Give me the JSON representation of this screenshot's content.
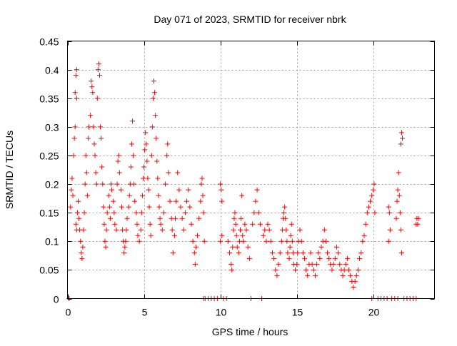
{
  "chart_data": {
    "type": "scatter",
    "title": "Day 071 of 2023, SRMTID for receiver nbrk",
    "xlabel": "GPS time / hours",
    "ylabel": "SRMTID / TECUs",
    "xlim": [
      0,
      24
    ],
    "ylim": [
      0,
      0.45
    ],
    "xticks": [
      0,
      5,
      10,
      15,
      20
    ],
    "yticks": [
      0,
      0.05,
      0.1,
      0.15,
      0.2,
      0.25,
      0.3,
      0.35,
      0.4,
      0.45
    ],
    "xtick_labels": [
      "0",
      "5",
      "10",
      "15",
      "20"
    ],
    "ytick_labels": [
      "0",
      "0.05",
      "0.1",
      "0.15",
      "0.2",
      "0.25",
      "0.3",
      "0.35",
      "0.4",
      "0.45"
    ],
    "grid": true,
    "marker": "+",
    "color": "#ff0000",
    "series": [
      {
        "name": "SRMTID",
        "points": [
          [
            0.1,
            0.0
          ],
          [
            0.2,
            0.16
          ],
          [
            0.25,
            0.19
          ],
          [
            0.3,
            0.21
          ],
          [
            0.35,
            0.18
          ],
          [
            0.4,
            0.25
          ],
          [
            0.45,
            0.28
          ],
          [
            0.5,
            0.3
          ],
          [
            0.5,
            0.36
          ],
          [
            0.55,
            0.39
          ],
          [
            0.6,
            0.4
          ],
          [
            0.6,
            0.35
          ],
          [
            0.55,
            0.13
          ],
          [
            0.6,
            0.12
          ],
          [
            0.65,
            0.15
          ],
          [
            0.7,
            0.17
          ],
          [
            0.75,
            0.14
          ],
          [
            0.8,
            0.12
          ],
          [
            0.85,
            0.1
          ],
          [
            0.9,
            0.08
          ],
          [
            0.95,
            0.07
          ],
          [
            1.0,
            0.09
          ],
          [
            1.05,
            0.12
          ],
          [
            1.1,
            0.15
          ],
          [
            1.15,
            0.2
          ],
          [
            1.2,
            0.25
          ],
          [
            1.25,
            0.22
          ],
          [
            1.3,
            0.18
          ],
          [
            1.35,
            0.28
          ],
          [
            1.4,
            0.3
          ],
          [
            1.5,
            0.32
          ],
          [
            1.55,
            0.38
          ],
          [
            1.6,
            0.37
          ],
          [
            1.65,
            0.36
          ],
          [
            1.7,
            0.3
          ],
          [
            1.75,
            0.27
          ],
          [
            1.8,
            0.25
          ],
          [
            1.85,
            0.22
          ],
          [
            1.9,
            0.2
          ],
          [
            1.95,
            0.35
          ],
          [
            2.0,
            0.4
          ],
          [
            2.05,
            0.41
          ],
          [
            2.1,
            0.39
          ],
          [
            2.15,
            0.3
          ],
          [
            2.2,
            0.28
          ],
          [
            2.25,
            0.23
          ],
          [
            2.3,
            0.2
          ],
          [
            2.35,
            0.16
          ],
          [
            2.4,
            0.13
          ],
          [
            2.45,
            0.1
          ],
          [
            2.5,
            0.09
          ],
          [
            2.55,
            0.12
          ],
          [
            2.6,
            0.15
          ],
          [
            2.7,
            0.18
          ],
          [
            2.75,
            0.16
          ],
          [
            2.8,
            0.14
          ],
          [
            2.85,
            0.2
          ],
          [
            2.9,
            0.19
          ],
          [
            3.0,
            0.17
          ],
          [
            3.05,
            0.15
          ],
          [
            3.1,
            0.13
          ],
          [
            3.2,
            0.12
          ],
          [
            3.25,
            0.2
          ],
          [
            3.3,
            0.24
          ],
          [
            3.35,
            0.25
          ],
          [
            3.4,
            0.22
          ],
          [
            3.5,
            0.19
          ],
          [
            3.55,
            0.16
          ],
          [
            3.6,
            0.12
          ],
          [
            3.65,
            0.1
          ],
          [
            3.7,
            0.08
          ],
          [
            3.75,
            0.09
          ],
          [
            3.8,
            0.1
          ],
          [
            3.85,
            0.12
          ],
          [
            3.9,
            0.14
          ],
          [
            4.0,
            0.16
          ],
          [
            4.05,
            0.18
          ],
          [
            4.1,
            0.2
          ],
          [
            4.15,
            0.23
          ],
          [
            4.2,
            0.27
          ],
          [
            4.25,
            0.31
          ],
          [
            4.3,
            0.25
          ],
          [
            4.35,
            0.2
          ],
          [
            4.4,
            0.17
          ],
          [
            4.5,
            0.15
          ],
          [
            4.55,
            0.13
          ],
          [
            4.6,
            0.11
          ],
          [
            4.7,
            0.1
          ],
          [
            4.8,
            0.12
          ],
          [
            4.85,
            0.15
          ],
          [
            4.9,
            0.18
          ],
          [
            4.95,
            0.21
          ],
          [
            5.0,
            0.23
          ],
          [
            5.05,
            0.26
          ],
          [
            5.1,
            0.29
          ],
          [
            5.15,
            0.27
          ],
          [
            5.2,
            0.24
          ],
          [
            5.25,
            0.21
          ],
          [
            5.3,
            0.19
          ],
          [
            5.35,
            0.16
          ],
          [
            5.4,
            0.13
          ],
          [
            5.45,
            0.11
          ],
          [
            5.5,
            0.25
          ],
          [
            5.55,
            0.3
          ],
          [
            5.6,
            0.35
          ],
          [
            5.65,
            0.38
          ],
          [
            5.7,
            0.36
          ],
          [
            5.75,
            0.32
          ],
          [
            5.8,
            0.28
          ],
          [
            5.85,
            0.24
          ],
          [
            5.9,
            0.21
          ],
          [
            5.95,
            0.18
          ],
          [
            6.0,
            0.16
          ],
          [
            6.05,
            0.14
          ],
          [
            6.1,
            0.13
          ],
          [
            6.2,
            0.12
          ],
          [
            6.3,
            0.15
          ],
          [
            6.4,
            0.2
          ],
          [
            6.5,
            0.25
          ],
          [
            6.55,
            0.27
          ],
          [
            6.6,
            0.22
          ],
          [
            6.7,
            0.17
          ],
          [
            6.8,
            0.14
          ],
          [
            6.85,
            0.12
          ],
          [
            6.9,
            0.08
          ],
          [
            7.0,
            0.11
          ],
          [
            7.05,
            0.14
          ],
          [
            7.1,
            0.17
          ],
          [
            7.2,
            0.22
          ],
          [
            7.3,
            0.19
          ],
          [
            7.4,
            0.16
          ],
          [
            7.5,
            0.14
          ],
          [
            7.6,
            0.12
          ],
          [
            7.7,
            0.15
          ],
          [
            7.8,
            0.17
          ],
          [
            7.9,
            0.19
          ],
          [
            8.0,
            0.16
          ],
          [
            8.1,
            0.13
          ],
          [
            8.2,
            0.1
          ],
          [
            8.3,
            0.08
          ],
          [
            8.35,
            0.06
          ],
          [
            8.4,
            0.09
          ],
          [
            8.5,
            0.11
          ],
          [
            8.6,
            0.14
          ],
          [
            8.7,
            0.17
          ],
          [
            8.75,
            0.2
          ],
          [
            8.8,
            0.21
          ],
          [
            8.85,
            0.18
          ],
          [
            8.9,
            0.15
          ],
          [
            8.95,
            0.1
          ],
          [
            8.9,
            0.0
          ],
          [
            9.0,
            0.0
          ],
          [
            9.2,
            0.0
          ],
          [
            9.4,
            0.0
          ],
          [
            9.6,
            0.0
          ],
          [
            9.8,
            0.0
          ],
          [
            10.0,
            0.2
          ],
          [
            10.05,
            0.19
          ],
          [
            10.1,
            0.17
          ],
          [
            10.0,
            0.1
          ],
          [
            10.1,
            0.11
          ],
          [
            10.2,
            0.0
          ],
          [
            10.4,
            0.0
          ],
          [
            10.5,
            0.1
          ],
          [
            10.6,
            0.08
          ],
          [
            10.7,
            0.06
          ],
          [
            10.75,
            0.05
          ],
          [
            10.8,
            0.09
          ],
          [
            10.85,
            0.12
          ],
          [
            10.9,
            0.14
          ],
          [
            10.95,
            0.15
          ],
          [
            11.0,
            0.13
          ],
          [
            11.05,
            0.11
          ],
          [
            11.1,
            0.09
          ],
          [
            11.2,
            0.08
          ],
          [
            11.25,
            0.1
          ],
          [
            11.3,
            0.12
          ],
          [
            11.35,
            0.14
          ],
          [
            11.4,
            0.18
          ],
          [
            11.45,
            0.11
          ],
          [
            11.5,
            0.1
          ],
          [
            11.6,
            0.13
          ],
          [
            11.7,
            0.12
          ],
          [
            11.8,
            0.09
          ],
          [
            11.9,
            0.07
          ],
          [
            12.0,
            0.0
          ],
          [
            12.1,
            0.13
          ],
          [
            12.2,
            0.15
          ],
          [
            12.3,
            0.17
          ],
          [
            12.4,
            0.19
          ],
          [
            12.5,
            0.15
          ],
          [
            12.6,
            0.13
          ],
          [
            12.7,
            0.0
          ],
          [
            12.8,
            0.11
          ],
          [
            12.9,
            0.12
          ],
          [
            13.0,
            0.1
          ],
          [
            13.1,
            0.13
          ],
          [
            13.2,
            0.12
          ],
          [
            13.3,
            0.1
          ],
          [
            13.4,
            0.08
          ],
          [
            13.5,
            0.07
          ],
          [
            13.6,
            0.05
          ],
          [
            13.7,
            0.04
          ],
          [
            13.8,
            0.06
          ],
          [
            13.9,
            0.08
          ],
          [
            14.0,
            0.1
          ],
          [
            14.05,
            0.12
          ],
          [
            14.1,
            0.14
          ],
          [
            14.15,
            0.15
          ],
          [
            14.2,
            0.16
          ],
          [
            14.25,
            0.14
          ],
          [
            14.3,
            0.12
          ],
          [
            14.35,
            0.1
          ],
          [
            14.4,
            0.08
          ],
          [
            14.5,
            0.07
          ],
          [
            14.55,
            0.09
          ],
          [
            14.6,
            0.11
          ],
          [
            14.65,
            0.13
          ],
          [
            14.7,
            0.1
          ],
          [
            14.75,
            0.08
          ],
          [
            14.8,
            0.06
          ],
          [
            14.9,
            0.05
          ],
          [
            15.0,
            0.06
          ],
          [
            15.05,
            0.08
          ],
          [
            15.1,
            0.1
          ],
          [
            15.2,
            0.12
          ],
          [
            15.3,
            0.1
          ],
          [
            15.4,
            0.08
          ],
          [
            15.5,
            0.07
          ],
          [
            15.6,
            0.05
          ],
          [
            15.7,
            0.04
          ],
          [
            15.8,
            0.06
          ],
          [
            15.9,
            0.08
          ],
          [
            16.0,
            0.06
          ],
          [
            16.1,
            0.05
          ],
          [
            16.2,
            0.04
          ],
          [
            16.3,
            0.06
          ],
          [
            16.4,
            0.08
          ],
          [
            16.5,
            0.07
          ],
          [
            16.6,
            0.09
          ],
          [
            16.7,
            0.1
          ],
          [
            16.8,
            0.12
          ],
          [
            16.9,
            0.1
          ],
          [
            17.0,
            0.08
          ],
          [
            17.1,
            0.07
          ],
          [
            17.2,
            0.06
          ],
          [
            17.3,
            0.05
          ],
          [
            17.4,
            0.06
          ],
          [
            17.5,
            0.07
          ],
          [
            17.6,
            0.09
          ],
          [
            17.7,
            0.08
          ],
          [
            17.8,
            0.06
          ],
          [
            17.9,
            0.05
          ],
          [
            18.0,
            0.04
          ],
          [
            18.1,
            0.05
          ],
          [
            18.2,
            0.06
          ],
          [
            18.3,
            0.07
          ],
          [
            18.4,
            0.05
          ],
          [
            18.5,
            0.04
          ],
          [
            18.6,
            0.03
          ],
          [
            18.7,
            0.02
          ],
          [
            18.8,
            0.03
          ],
          [
            18.9,
            0.04
          ],
          [
            19.0,
            0.05
          ],
          [
            19.1,
            0.07
          ],
          [
            19.2,
            0.08
          ],
          [
            19.3,
            0.1
          ],
          [
            19.4,
            0.11
          ],
          [
            19.5,
            0.13
          ],
          [
            19.6,
            0.15
          ],
          [
            19.7,
            0.16
          ],
          [
            19.8,
            0.17
          ],
          [
            19.9,
            0.18
          ],
          [
            20.0,
            0.19
          ],
          [
            20.05,
            0.2
          ],
          [
            20.1,
            0.15
          ],
          [
            19.9,
            0.0
          ],
          [
            20.3,
            0.0
          ],
          [
            20.5,
            0.0
          ],
          [
            20.7,
            0.0
          ],
          [
            20.9,
            0.0
          ],
          [
            21.0,
            0.16
          ],
          [
            21.05,
            0.15
          ],
          [
            21.1,
            0.12
          ],
          [
            21.0,
            0.1
          ],
          [
            21.2,
            0.0
          ],
          [
            21.4,
            0.0
          ],
          [
            21.5,
            0.14
          ],
          [
            21.55,
            0.17
          ],
          [
            21.6,
            0.19
          ],
          [
            21.65,
            0.22
          ],
          [
            21.7,
            0.18
          ],
          [
            21.75,
            0.15
          ],
          [
            21.8,
            0.12
          ],
          [
            21.85,
            0.08
          ],
          [
            21.8,
            0.27
          ],
          [
            21.85,
            0.29
          ],
          [
            21.9,
            0.28
          ],
          [
            21.6,
            0.0
          ],
          [
            22.0,
            0.0
          ],
          [
            22.2,
            0.0
          ],
          [
            22.4,
            0.0
          ],
          [
            22.6,
            0.0
          ],
          [
            22.8,
            0.13
          ],
          [
            22.85,
            0.14
          ],
          [
            22.9,
            0.13
          ],
          [
            22.95,
            0.14
          ],
          [
            22.8,
            0.0
          ]
        ]
      }
    ]
  }
}
